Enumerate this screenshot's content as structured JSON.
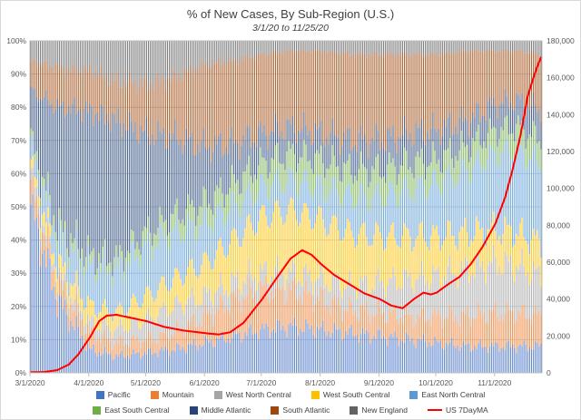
{
  "chart_data": {
    "type": "bar",
    "subtype": "100%-stacked-daily-columns-with-line-overlay",
    "title": "% of New Cases, By Sub-Region (U.S.)",
    "subtitle": "3/1/20 to 11/25/20",
    "x_axis": {
      "total_days": 270,
      "tick_days": [
        0,
        31,
        61,
        92,
        122,
        153,
        184,
        214,
        245
      ],
      "tick_labels": [
        "3/1/2020",
        "4/1/2020",
        "5/1/2020",
        "6/1/2020",
        "7/1/2020",
        "8/1/2020",
        "9/1/2020",
        "10/1/2020",
        "11/1/2020"
      ]
    },
    "y_left": {
      "min": 0,
      "max": 100,
      "tick_labels": [
        "0%",
        "10%",
        "20%",
        "30%",
        "40%",
        "50%",
        "60%",
        "70%",
        "80%",
        "90%",
        "100%"
      ]
    },
    "y_right": {
      "min": 0,
      "max": 180000,
      "tick_labels": [
        "0",
        "20,000",
        "40,000",
        "60,000",
        "80,000",
        "100,000",
        "120,000",
        "140,000",
        "160,000",
        "180,000"
      ]
    },
    "keyframe_days": [
      0,
      14,
      31,
      45,
      61,
      75,
      92,
      107,
      122,
      137,
      153,
      168,
      184,
      199,
      214,
      230,
      245,
      257,
      269
    ],
    "series": [
      {
        "name": "Pacific",
        "color": "#4472C4",
        "values": [
          50,
          22,
          7,
          5,
          6,
          7,
          9,
          11,
          13,
          14,
          13,
          12,
          11,
          10,
          9,
          8,
          8,
          8,
          8
        ]
      },
      {
        "name": "Mountain",
        "color": "#ED7D31",
        "values": [
          6,
          5,
          5,
          4,
          4,
          5,
          8,
          11,
          12,
          11,
          9,
          7,
          7,
          7,
          8,
          9,
          10,
          10,
          9
        ]
      },
      {
        "name": "West North Central",
        "color": "#A5A5A5",
        "values": [
          3,
          2,
          3,
          4,
          6,
          8,
          6,
          5,
          5,
          5,
          6,
          7,
          9,
          11,
          12,
          14,
          15,
          14,
          12
        ]
      },
      {
        "name": "West South Central",
        "color": "#FFC000",
        "values": [
          3,
          4,
          5,
          5,
          7,
          8,
          10,
          13,
          17,
          19,
          18,
          16,
          14,
          13,
          12,
          11,
          10,
          10,
          10
        ]
      },
      {
        "name": "East North Central",
        "color": "#5B9BD5",
        "values": [
          6,
          8,
          12,
          13,
          15,
          14,
          12,
          10,
          9,
          9,
          10,
          11,
          12,
          14,
          16,
          19,
          23,
          25,
          24
        ]
      },
      {
        "name": "East South Central",
        "color": "#70AD47",
        "values": [
          2,
          3,
          3,
          3,
          4,
          5,
          6,
          7,
          7,
          8,
          8,
          8,
          8,
          8,
          7,
          7,
          7,
          7,
          7
        ]
      },
      {
        "name": "Middle Atlantic",
        "color": "#264478",
        "values": [
          15,
          36,
          44,
          42,
          30,
          24,
          17,
          12,
          9,
          8,
          8,
          9,
          9,
          9,
          9,
          8,
          8,
          8,
          9
        ]
      },
      {
        "name": "South Atlantic",
        "color": "#9E480E",
        "values": [
          9,
          12,
          12,
          12,
          15,
          18,
          25,
          25,
          24,
          23,
          25,
          26,
          26,
          24,
          23,
          21,
          16,
          15,
          17
        ]
      },
      {
        "name": "New England",
        "color": "#636363",
        "values": [
          6,
          8,
          9,
          12,
          13,
          11,
          7,
          6,
          4,
          3,
          3,
          4,
          4,
          4,
          4,
          3,
          3,
          3,
          4
        ]
      }
    ],
    "line_series": {
      "name": "US 7DayMA",
      "color": "#FF0000",
      "axis": "right",
      "keyframes": [
        [
          0,
          300
        ],
        [
          7,
          450
        ],
        [
          14,
          1500
        ],
        [
          20,
          4500
        ],
        [
          25,
          10000
        ],
        [
          31,
          19000
        ],
        [
          36,
          28000
        ],
        [
          40,
          31000
        ],
        [
          45,
          31500
        ],
        [
          52,
          30000
        ],
        [
          61,
          28000
        ],
        [
          70,
          25000
        ],
        [
          80,
          23000
        ],
        [
          92,
          21500
        ],
        [
          99,
          20800
        ],
        [
          105,
          22000
        ],
        [
          112,
          27000
        ],
        [
          122,
          40000
        ],
        [
          130,
          52000
        ],
        [
          137,
          62000
        ],
        [
          143,
          66500
        ],
        [
          148,
          64000
        ],
        [
          153,
          59000
        ],
        [
          160,
          53000
        ],
        [
          168,
          48000
        ],
        [
          176,
          43000
        ],
        [
          184,
          40000
        ],
        [
          190,
          36500
        ],
        [
          196,
          35000
        ],
        [
          202,
          40000
        ],
        [
          207,
          43500
        ],
        [
          211,
          42500
        ],
        [
          214,
          43500
        ],
        [
          220,
          48000
        ],
        [
          226,
          52000
        ],
        [
          232,
          59000
        ],
        [
          238,
          68000
        ],
        [
          245,
          81000
        ],
        [
          250,
          95000
        ],
        [
          254,
          110000
        ],
        [
          258,
          128000
        ],
        [
          262,
          150000
        ],
        [
          265,
          160000
        ],
        [
          267,
          166000
        ],
        [
          269,
          171000
        ]
      ]
    },
    "legend_rows": [
      [
        "Pacific",
        "Mountain",
        "West North Central",
        "West South Central",
        "East North Central"
      ],
      [
        "East South Central",
        "Middle Atlantic",
        "South Atlantic",
        "New England",
        "US 7DayMA"
      ]
    ]
  }
}
